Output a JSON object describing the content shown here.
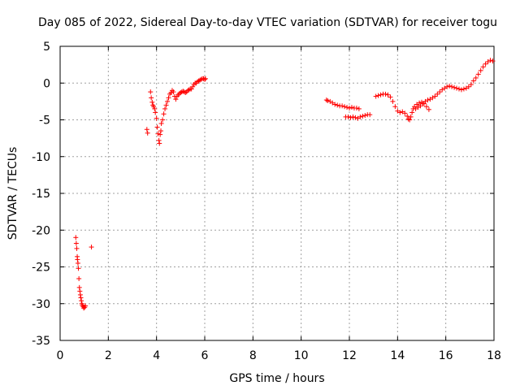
{
  "chart_data": {
    "type": "scatter",
    "title": "Day 085 of 2022, Sidereal Day-to-day VTEC variation (SDTVAR) for receiver togu",
    "xlabel": "GPS time / hours",
    "ylabel": "SDTVAR / TECUs",
    "xlim": [
      0,
      18
    ],
    "ylim": [
      -35,
      5
    ],
    "xticks": [
      0,
      2,
      4,
      6,
      8,
      10,
      12,
      14,
      16,
      18
    ],
    "yticks": [
      -35,
      -30,
      -25,
      -20,
      -15,
      -10,
      -5,
      0,
      5
    ],
    "grid": true,
    "marker": "+",
    "color": "#ff0000",
    "series": [
      {
        "name": "SDTVAR",
        "x": [
          0.65,
          0.67,
          0.69,
          0.71,
          0.72,
          0.74,
          0.76,
          0.78,
          0.8,
          0.82,
          0.84,
          0.86,
          0.88,
          0.9,
          0.92,
          0.95,
          0.98,
          1.02,
          1.05,
          1.3,
          3.6,
          3.63,
          3.75,
          3.78,
          3.82,
          3.85,
          3.88,
          3.92,
          3.95,
          4.0,
          4.03,
          4.06,
          4.1,
          4.12,
          4.15,
          4.18,
          4.2,
          4.25,
          4.3,
          4.35,
          4.4,
          4.45,
          4.5,
          4.55,
          4.6,
          4.65,
          4.7,
          4.75,
          4.8,
          4.85,
          4.9,
          4.95,
          5.0,
          5.05,
          5.1,
          5.15,
          5.2,
          5.25,
          5.3,
          5.35,
          5.4,
          5.45,
          5.5,
          5.55,
          5.6,
          5.65,
          5.7,
          5.75,
          5.8,
          5.85,
          5.9,
          5.95,
          6.0,
          6.03,
          11.05,
          11.1,
          11.2,
          11.3,
          11.4,
          11.5,
          11.6,
          11.7,
          11.8,
          11.9,
          12.0,
          12.1,
          12.2,
          12.3,
          12.4,
          11.85,
          11.95,
          12.05,
          12.15,
          12.25,
          12.35,
          12.45,
          12.55,
          12.65,
          12.75,
          12.85,
          13.1,
          13.2,
          13.3,
          13.4,
          13.5,
          13.6,
          13.7,
          13.8,
          13.9,
          14.0,
          14.1,
          14.2,
          14.3,
          14.4,
          14.45,
          14.5,
          14.55,
          14.6,
          14.65,
          14.7,
          14.8,
          14.9,
          15.0,
          15.1,
          15.2,
          15.3,
          14.75,
          14.85,
          14.95,
          15.05,
          15.15,
          15.25,
          15.35,
          15.45,
          15.55,
          15.65,
          15.75,
          15.85,
          15.95,
          16.05,
          16.15,
          16.25,
          16.35,
          16.45,
          16.55,
          16.65,
          16.75,
          16.85,
          16.95,
          17.05,
          17.15,
          17.25,
          17.35,
          17.45,
          17.55,
          17.65,
          17.75,
          17.85,
          17.95
        ],
        "y": [
          -21.0,
          -21.8,
          -22.5,
          -23.6,
          -24.0,
          -24.5,
          -25.2,
          -26.6,
          -27.8,
          -28.3,
          -28.8,
          -29.2,
          -29.6,
          -30.0,
          -30.2,
          -30.4,
          -30.6,
          -30.5,
          -30.3,
          -22.3,
          -6.3,
          -6.8,
          -1.2,
          -2.0,
          -2.6,
          -3.0,
          -3.2,
          -3.5,
          -4.0,
          -4.8,
          -6.0,
          -6.9,
          -7.8,
          -8.2,
          -7.0,
          -6.5,
          -5.5,
          -5.0,
          -4.2,
          -3.5,
          -3.0,
          -2.5,
          -2.0,
          -1.5,
          -1.3,
          -1.0,
          -1.2,
          -1.8,
          -2.2,
          -1.8,
          -1.6,
          -1.4,
          -1.3,
          -1.2,
          -1.1,
          -1.2,
          -1.3,
          -1.2,
          -1.0,
          -0.9,
          -0.8,
          -0.8,
          -0.5,
          -0.2,
          0.0,
          0.0,
          0.2,
          0.3,
          0.4,
          0.5,
          0.6,
          0.6,
          0.5,
          0.6,
          -2.3,
          -2.4,
          -2.5,
          -2.7,
          -2.9,
          -3.0,
          -3.1,
          -3.1,
          -3.2,
          -3.3,
          -3.4,
          -3.3,
          -3.4,
          -3.4,
          -3.5,
          -4.6,
          -4.6,
          -4.7,
          -4.6,
          -4.7,
          -4.8,
          -4.6,
          -4.5,
          -4.4,
          -4.3,
          -4.3,
          -1.8,
          -1.7,
          -1.6,
          -1.5,
          -1.5,
          -1.6,
          -1.9,
          -2.5,
          -3.2,
          -3.8,
          -4.0,
          -3.9,
          -4.1,
          -4.5,
          -4.9,
          -5.0,
          -4.6,
          -4.0,
          -3.5,
          -3.2,
          -2.9,
          -2.7,
          -2.6,
          -2.8,
          -3.2,
          -3.6,
          -3.5,
          -3.3,
          -3.1,
          -2.8,
          -2.5,
          -2.3,
          -2.2,
          -2.0,
          -1.8,
          -1.5,
          -1.2,
          -0.9,
          -0.7,
          -0.5,
          -0.4,
          -0.5,
          -0.6,
          -0.7,
          -0.8,
          -0.9,
          -0.8,
          -0.7,
          -0.5,
          -0.2,
          0.3,
          0.7,
          1.2,
          1.7,
          2.2,
          2.6,
          2.9,
          3.1,
          3.0
        ]
      }
    ]
  }
}
